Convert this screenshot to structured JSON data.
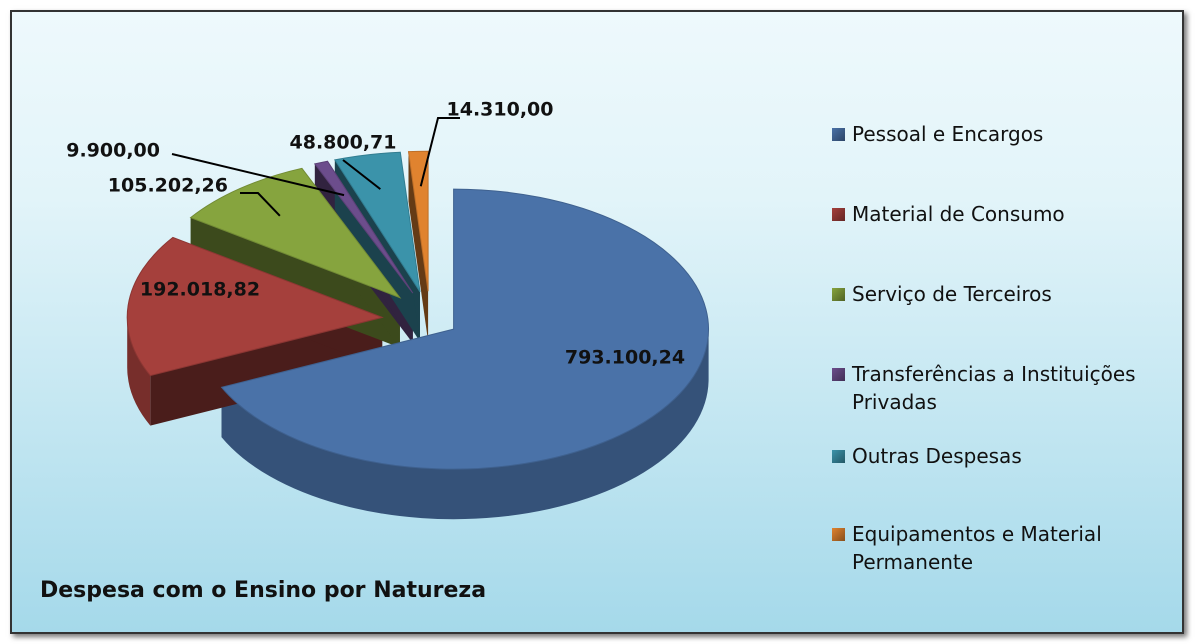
{
  "chart_data": {
    "type": "pie",
    "title": "Despesa com o Ensino por Natureza",
    "categories": [
      "Pessoal e Encargos",
      "Material de Consumo",
      "Serviço de Terceiros",
      "Transferências a Instituições Privadas",
      "Outras Despesas",
      "Equipamentos e Material Permanente"
    ],
    "values": [
      793100.24,
      192018.82,
      105202.26,
      9900.0,
      48800.71,
      14310.0
    ],
    "value_labels": [
      "793.100,24",
      "192.018,82",
      "105.202,26",
      "9.900,00",
      "48.800,71",
      "14.310,00"
    ],
    "colors": [
      "#4a72a8",
      "#a5403c",
      "#86a43e",
      "#6c4d8c",
      "#3b93aa",
      "#e0832f"
    ],
    "legend": "right"
  }
}
